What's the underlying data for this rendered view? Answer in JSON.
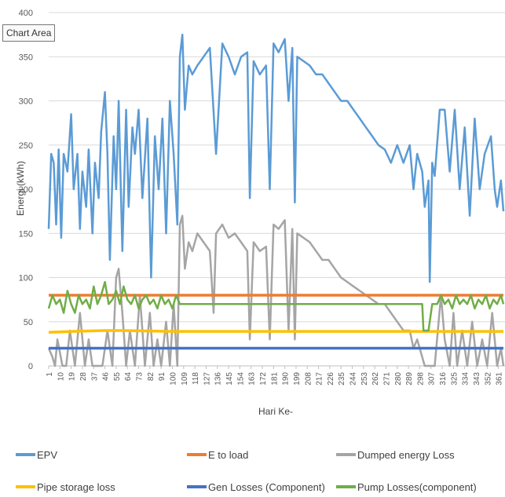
{
  "tooltip": "Chart Area",
  "chart_data": {
    "type": "line",
    "title": "",
    "xlabel": "Hari Ke-",
    "ylabel": "Energi (kWh)",
    "ylim": [
      0,
      400
    ],
    "xlim": [
      1,
      365
    ],
    "yticks": [
      0,
      50,
      100,
      150,
      200,
      250,
      300,
      350,
      400
    ],
    "xticks": [
      "1",
      "10",
      "19",
      "28",
      "37",
      "46",
      "55",
      "64",
      "73",
      "82",
      "91",
      "100",
      "109",
      "118",
      "127",
      "136",
      "145",
      "154",
      "163",
      "172",
      "181",
      "190",
      "199",
      "208",
      "217",
      "226",
      "235",
      "244",
      "253",
      "262",
      "271",
      "280",
      "289",
      "298",
      "307",
      "316",
      "325",
      "334",
      "343",
      "352",
      "361"
    ],
    "grid": true,
    "legend_position": "bottom",
    "series": [
      {
        "name": "EPV",
        "color": "#5B9BD5",
        "x": [
          1,
          3,
          5,
          7,
          9,
          11,
          13,
          16,
          19,
          21,
          24,
          26,
          28,
          31,
          33,
          36,
          38,
          41,
          43,
          46,
          48,
          50,
          53,
          55,
          57,
          60,
          63,
          65,
          68,
          70,
          73,
          76,
          80,
          83,
          86,
          89,
          92,
          95,
          98,
          101,
          104,
          106,
          108,
          110,
          113,
          116,
          120,
          125,
          130,
          135,
          140,
          145,
          150,
          155,
          160,
          162,
          165,
          170,
          175,
          178,
          181,
          185,
          190,
          193,
          196,
          198,
          200,
          205,
          210,
          215,
          220,
          225,
          230,
          235,
          240,
          245,
          250,
          255,
          260,
          265,
          270,
          275,
          280,
          285,
          290,
          293,
          296,
          300,
          302,
          305,
          306,
          308,
          310,
          314,
          318,
          322,
          326,
          330,
          334,
          338,
          342,
          346,
          350,
          355,
          358,
          360,
          363,
          365
        ],
        "y": [
          155,
          240,
          230,
          160,
          245,
          145,
          240,
          220,
          285,
          200,
          240,
          155,
          220,
          180,
          245,
          150,
          230,
          190,
          265,
          310,
          240,
          120,
          260,
          200,
          300,
          130,
          290,
          180,
          270,
          240,
          290,
          190,
          280,
          100,
          260,
          200,
          280,
          150,
          300,
          240,
          160,
          350,
          375,
          290,
          340,
          330,
          340,
          350,
          360,
          240,
          365,
          350,
          330,
          350,
          355,
          190,
          345,
          330,
          340,
          200,
          365,
          355,
          370,
          300,
          360,
          185,
          350,
          345,
          340,
          330,
          330,
          320,
          310,
          300,
          300,
          290,
          280,
          270,
          260,
          250,
          245,
          230,
          250,
          230,
          250,
          200,
          240,
          220,
          180,
          210,
          95,
          230,
          215,
          290,
          290,
          220,
          290,
          200,
          270,
          170,
          280,
          200,
          240,
          260,
          200,
          180,
          210,
          175
        ]
      },
      {
        "name": "E to load",
        "color": "#ED7D31",
        "x": [
          1,
          365
        ],
        "y": [
          80,
          80
        ]
      },
      {
        "name": "Dumped energy Loss",
        "color": "#A5A5A5",
        "x": [
          1,
          4,
          6,
          8,
          12,
          15,
          18,
          22,
          26,
          30,
          33,
          36,
          40,
          44,
          48,
          52,
          55,
          57,
          60,
          63,
          66,
          70,
          74,
          78,
          82,
          85,
          88,
          91,
          95,
          98,
          101,
          104,
          106,
          108,
          110,
          113,
          116,
          120,
          125,
          130,
          133,
          135,
          140,
          145,
          150,
          155,
          160,
          162,
          165,
          170,
          175,
          178,
          181,
          185,
          190,
          193,
          196,
          198,
          200,
          205,
          210,
          215,
          220,
          225,
          230,
          235,
          240,
          245,
          250,
          255,
          260,
          265,
          270,
          275,
          280,
          285,
          290,
          293,
          296,
          300,
          302,
          305,
          310,
          315,
          318,
          322,
          325,
          328,
          332,
          336,
          340,
          344,
          348,
          352,
          356,
          360,
          363,
          365
        ],
        "y": [
          20,
          10,
          0,
          30,
          0,
          0,
          40,
          0,
          60,
          0,
          30,
          0,
          0,
          0,
          40,
          0,
          100,
          110,
          60,
          0,
          40,
          0,
          80,
          0,
          60,
          0,
          30,
          0,
          50,
          0,
          70,
          0,
          160,
          170,
          110,
          140,
          130,
          150,
          140,
          130,
          60,
          150,
          160,
          145,
          150,
          140,
          130,
          30,
          140,
          130,
          135,
          30,
          160,
          155,
          165,
          40,
          155,
          30,
          150,
          145,
          140,
          130,
          120,
          120,
          110,
          100,
          95,
          90,
          85,
          80,
          75,
          70,
          70,
          60,
          50,
          40,
          40,
          20,
          30,
          10,
          0,
          0,
          0,
          80,
          30,
          0,
          60,
          0,
          40,
          0,
          50,
          0,
          30,
          0,
          60,
          0,
          20,
          0
        ]
      },
      {
        "name": "Pipe storage loss",
        "color": "#FFC000",
        "x": [
          1,
          20,
          46,
          60,
          100,
          365
        ],
        "y": [
          38,
          39,
          40,
          40,
          39,
          39
        ]
      },
      {
        "name": "Gen Losses (Component)",
        "color": "#4472C4",
        "x": [
          1,
          365
        ],
        "y": [
          20,
          20
        ]
      },
      {
        "name": "Pump Losses(component)",
        "color": "#70AD47",
        "x": [
          1,
          4,
          7,
          10,
          13,
          16,
          19,
          22,
          25,
          28,
          31,
          34,
          37,
          40,
          43,
          46,
          49,
          52,
          55,
          58,
          61,
          64,
          67,
          70,
          73,
          76,
          79,
          82,
          85,
          88,
          91,
          94,
          97,
          100,
          103,
          106,
          109,
          112,
          115,
          120,
          160,
          200,
          250,
          300,
          301,
          305,
          308,
          312,
          315,
          318,
          321,
          324,
          327,
          330,
          333,
          336,
          339,
          342,
          345,
          348,
          351,
          354,
          357,
          360,
          363,
          365
        ],
        "y": [
          65,
          80,
          70,
          75,
          60,
          85,
          70,
          60,
          80,
          70,
          75,
          65,
          90,
          70,
          80,
          95,
          70,
          75,
          85,
          70,
          90,
          75,
          70,
          80,
          65,
          75,
          80,
          70,
          75,
          65,
          80,
          70,
          75,
          65,
          80,
          70,
          70,
          70,
          70,
          70,
          70,
          70,
          70,
          70,
          40,
          40,
          70,
          70,
          80,
          70,
          75,
          65,
          80,
          70,
          75,
          70,
          80,
          65,
          75,
          70,
          80,
          65,
          75,
          70,
          80,
          70
        ]
      }
    ]
  }
}
